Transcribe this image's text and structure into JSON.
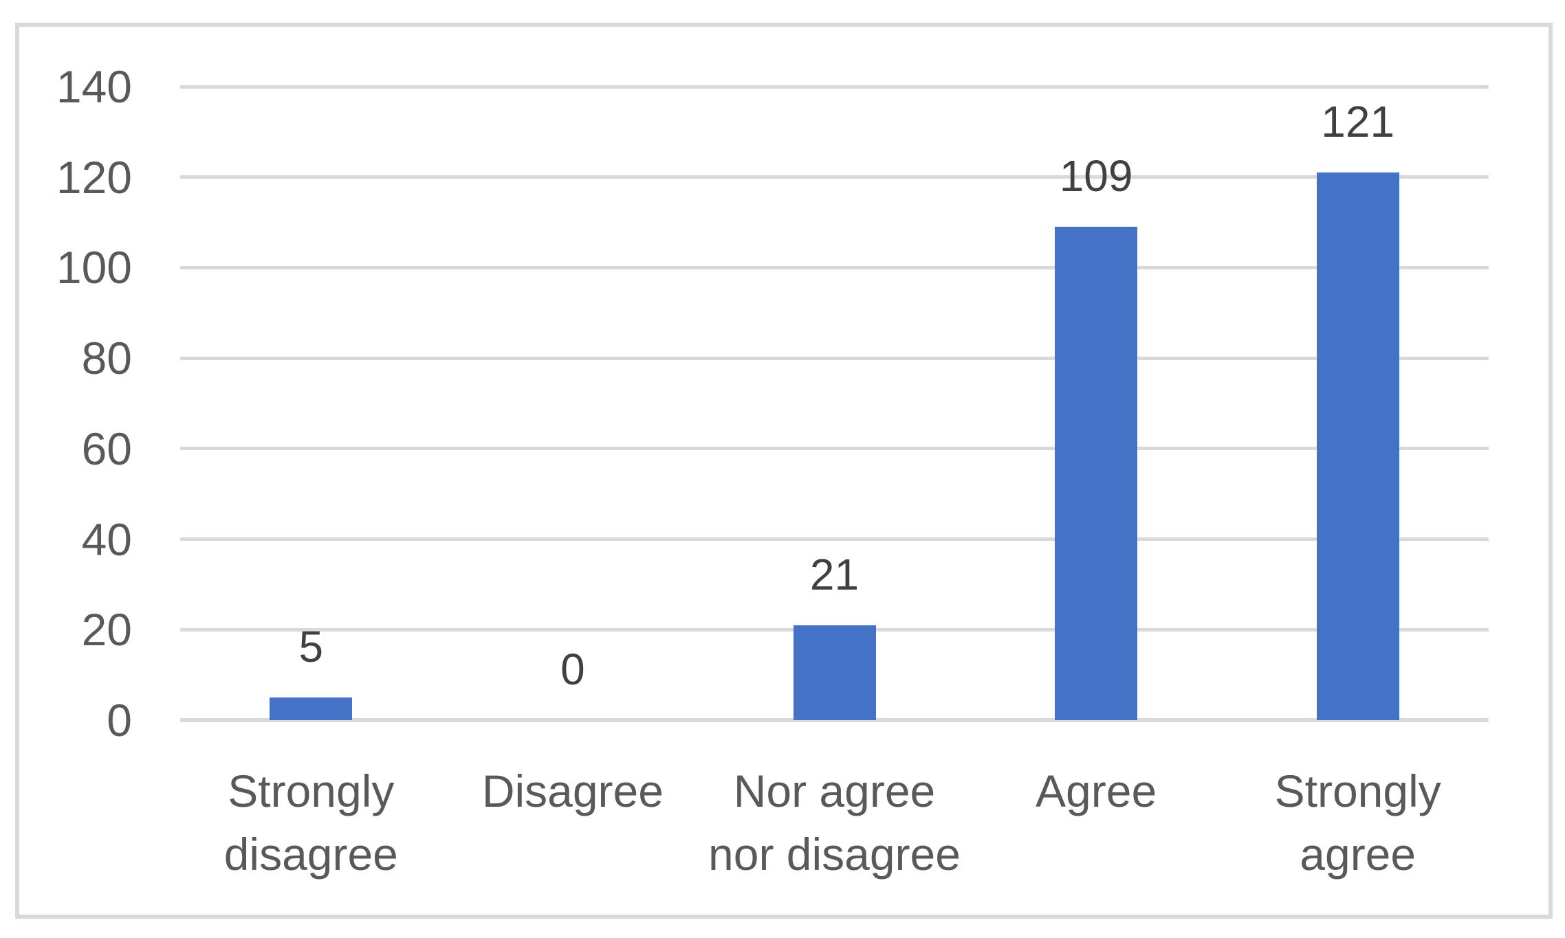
{
  "chart_data": {
    "type": "bar",
    "categories": [
      "Strongly disagree",
      "Disagree",
      "Nor agree nor disagree",
      "Agree",
      "Strongly agree"
    ],
    "values": [
      5,
      0,
      21,
      109,
      121
    ],
    "data_labels": [
      "5",
      "0",
      "21",
      "109",
      "121"
    ],
    "title": "",
    "xlabel": "",
    "ylabel": "",
    "ylim": [
      0,
      140
    ],
    "yticks": [
      0,
      20,
      40,
      60,
      80,
      100,
      120,
      140
    ],
    "grid": "horizontal-gridlines-on",
    "legend": "none",
    "colors": {
      "bar": "#4472c4",
      "gridline": "#d9d9d9",
      "axis_line": "#d9d9d9",
      "frame_border": "#d9d9d9",
      "tick_label_text": "#595959",
      "category_label_text": "#595959",
      "data_label_text": "#404040",
      "background": "#ffffff"
    }
  }
}
